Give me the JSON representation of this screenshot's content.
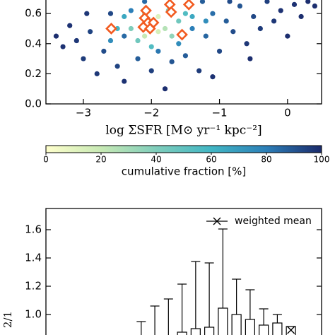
{
  "chart_data": [
    {
      "type": "scatter",
      "xlabel": "log ΣSFR  [M⊙ yr⁻¹ kpc⁻²]",
      "xlim": [
        -3.55,
        0.5
      ],
      "xticks": [
        {
          "value": -3,
          "label": "−3"
        },
        {
          "value": -2,
          "label": "−2"
        },
        {
          "value": -1,
          "label": "−1"
        },
        0
      ],
      "ylim": [
        0,
        0.69
      ],
      "yticks": [
        {
          "value": 0,
          "label": "0.0"
        },
        0.2,
        0.4,
        0.6
      ],
      "x": [
        -3.3,
        -3.1,
        -3.0,
        -2.9,
        -2.8,
        -2.7,
        -2.6,
        -2.5,
        -2.4,
        -2.4,
        -2.3,
        -2.2,
        -2.1,
        -2.0,
        -1.9,
        -1.8,
        -1.7,
        -1.6,
        -1.5,
        -1.4,
        -1.3,
        -1.2,
        -1.1,
        -1.0,
        -0.9,
        -0.8,
        -0.7,
        -0.6,
        -0.5,
        -0.4,
        -0.3,
        -0.2,
        -0.1,
        0.0,
        0.1,
        0.2,
        0.3,
        0.4,
        -3.2,
        -2.95,
        -0.85,
        -1.25,
        -3.4,
        -1.1,
        -0.55,
        -2.3,
        -2.2,
        -2.1,
        -2.0,
        -1.9,
        -1.8,
        -1.7,
        -1.9,
        -2.1,
        -1.6,
        -1.5,
        -2.5,
        -1.4,
        -2.0,
        -1.75,
        -2.4,
        -1.2,
        -2.6
      ],
      "y": [
        0.38,
        0.42,
        0.3,
        0.48,
        0.2,
        0.35,
        0.6,
        0.25,
        0.15,
        0.45,
        0.62,
        0.3,
        0.68,
        0.22,
        0.35,
        0.1,
        0.28,
        0.4,
        0.32,
        0.5,
        0.22,
        0.45,
        0.6,
        0.35,
        0.55,
        0.48,
        0.65,
        0.4,
        0.58,
        0.5,
        0.68,
        0.55,
        0.62,
        0.45,
        0.66,
        0.58,
        0.68,
        0.65,
        0.52,
        0.6,
        0.68,
        0.68,
        0.45,
        0.18,
        0.3,
        0.5,
        0.42,
        0.45,
        0.55,
        0.58,
        0.5,
        0.45,
        0.48,
        0.6,
        0.55,
        0.6,
        0.5,
        0.58,
        0.38,
        0.62,
        0.58,
        0.55,
        0.42
      ],
      "fraction": [
        98,
        97,
        96,
        94,
        97,
        92,
        93,
        94,
        98,
        85,
        80,
        88,
        85,
        95,
        82,
        99,
        90,
        75,
        88,
        80,
        96,
        86,
        84,
        93,
        88,
        92,
        90,
        97,
        93,
        96,
        95,
        97,
        98,
        99,
        98,
        99,
        99,
        99,
        98,
        97,
        92,
        88,
        99,
        98,
        99,
        40,
        45,
        20,
        10,
        12,
        25,
        35,
        15,
        30,
        45,
        55,
        60,
        65,
        55,
        40,
        65,
        75,
        75
      ],
      "highlight": {
        "color": "#f25a1f",
        "x": [
          -2.59,
          -2.08,
          -2.1,
          -2.05,
          -2.12,
          -1.97,
          -2.02,
          -1.73,
          -1.71,
          -1.45,
          -1.55
        ],
        "y": [
          0.5,
          0.62,
          0.57,
          0.54,
          0.51,
          0.54,
          0.5,
          0.66,
          0.61,
          0.66,
          0.46
        ]
      },
      "colorbar": {
        "label": "cumulative fraction [%]",
        "clim": [
          0,
          100
        ],
        "ticks": [
          0,
          20,
          40,
          60,
          80,
          100
        ],
        "colormap": [
          "#ffffcc",
          "#c7e9b4",
          "#7fcdbb",
          "#41b6c4",
          "#2c7fb8",
          "#1b2a6b"
        ]
      }
    },
    {
      "type": "box",
      "ylabel": "2/1",
      "xlim": [
        -3.55,
        0.5
      ],
      "ylim": [
        0.855,
        1.75
      ],
      "yticks": [
        1.6,
        1.4,
        1.2,
        {
          "value": 1.0,
          "label": "1.0"
        }
      ],
      "x": [
        -2.15,
        -1.95,
        -1.75,
        -1.55,
        -1.35,
        -1.15,
        -0.95,
        -0.75,
        -0.55,
        -0.35,
        -0.15,
        0.05
      ],
      "whisker_high": [
        0.95,
        1.06,
        1.11,
        1.215,
        1.375,
        1.365,
        1.605,
        1.25,
        1.175,
        1.04,
        1.0,
        0.915
      ],
      "q3": [
        null,
        null,
        null,
        0.875,
        0.9,
        0.91,
        1.045,
        1.0,
        0.965,
        0.925,
        0.94,
        0.915
      ],
      "series": [
        {
          "name": "weighted mean",
          "values": [
            null,
            null,
            null,
            null,
            null,
            null,
            null,
            null,
            null,
            null,
            null,
            0.89
          ]
        }
      ]
    }
  ]
}
